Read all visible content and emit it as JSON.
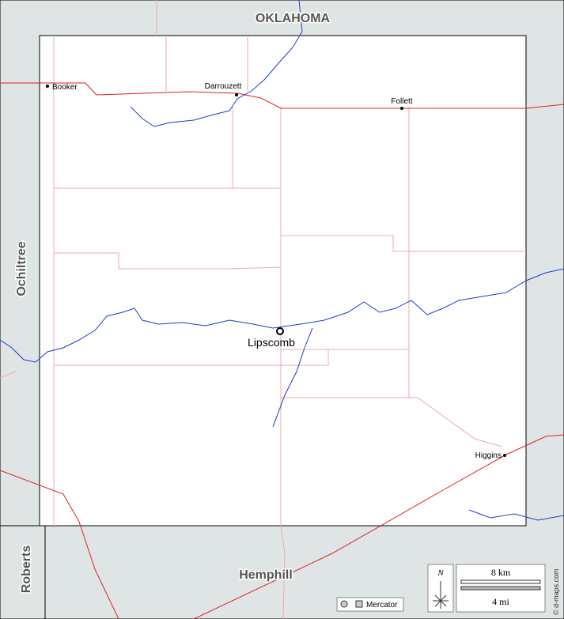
{
  "regions": {
    "north": "OKLAHOMA",
    "west": "Ochiltree",
    "southwest": "Roberts",
    "south": "Hemphill"
  },
  "towns": [
    {
      "name": "Booker"
    },
    {
      "name": "Darrouzett"
    },
    {
      "name": "Follett"
    },
    {
      "name": "Lipscomb"
    },
    {
      "name": "Higgins"
    }
  ],
  "legend": {
    "compass": "N",
    "scale_km": "8 km",
    "scale_mi": "4 mi",
    "projection": "Mercator"
  },
  "credit": "© d-maps.com"
}
